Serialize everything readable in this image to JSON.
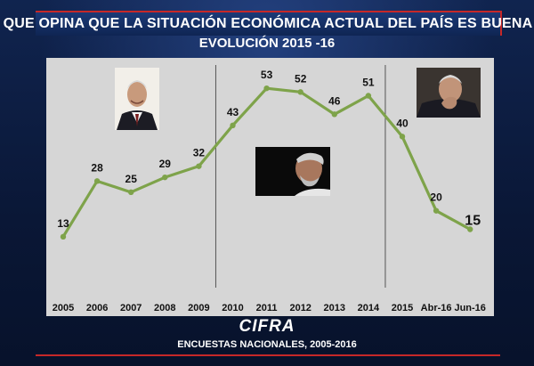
{
  "title": "QUE OPINA QUE LA SITUACIÓN ECONÓMICA ACTUAL DEL PAÍS ES BUENA",
  "subtitle": "EVOLUCIÓN 2015 -16",
  "logo_text": "CIFRA",
  "source": "ENCUESTAS NACIONALES,  2005-2016",
  "colors": {
    "line": "#7ea34a",
    "panel": "#d6d6d6",
    "accent": "#c62828",
    "background": "#0b1a3c"
  },
  "chart_data": {
    "type": "line",
    "categories": [
      "2005",
      "2006",
      "2007",
      "2008",
      "2009",
      "2010",
      "2011",
      "2012",
      "2013",
      "2014",
      "2015",
      "Abr-16",
      "Jun-16"
    ],
    "values": [
      13,
      28,
      25,
      29,
      32,
      43,
      53,
      52,
      46,
      51,
      40,
      20,
      15
    ],
    "title": "QUE OPINA QUE LA SITUACIÓN ECONÓMICA ACTUAL DEL PAÍS ES BUENA",
    "subtitle": "EVOLUCIÓN 2015 -16",
    "ylim": [
      0,
      60
    ],
    "grid": false,
    "legend": "none",
    "period_dividers_after": [
      "2009",
      "2014"
    ]
  }
}
